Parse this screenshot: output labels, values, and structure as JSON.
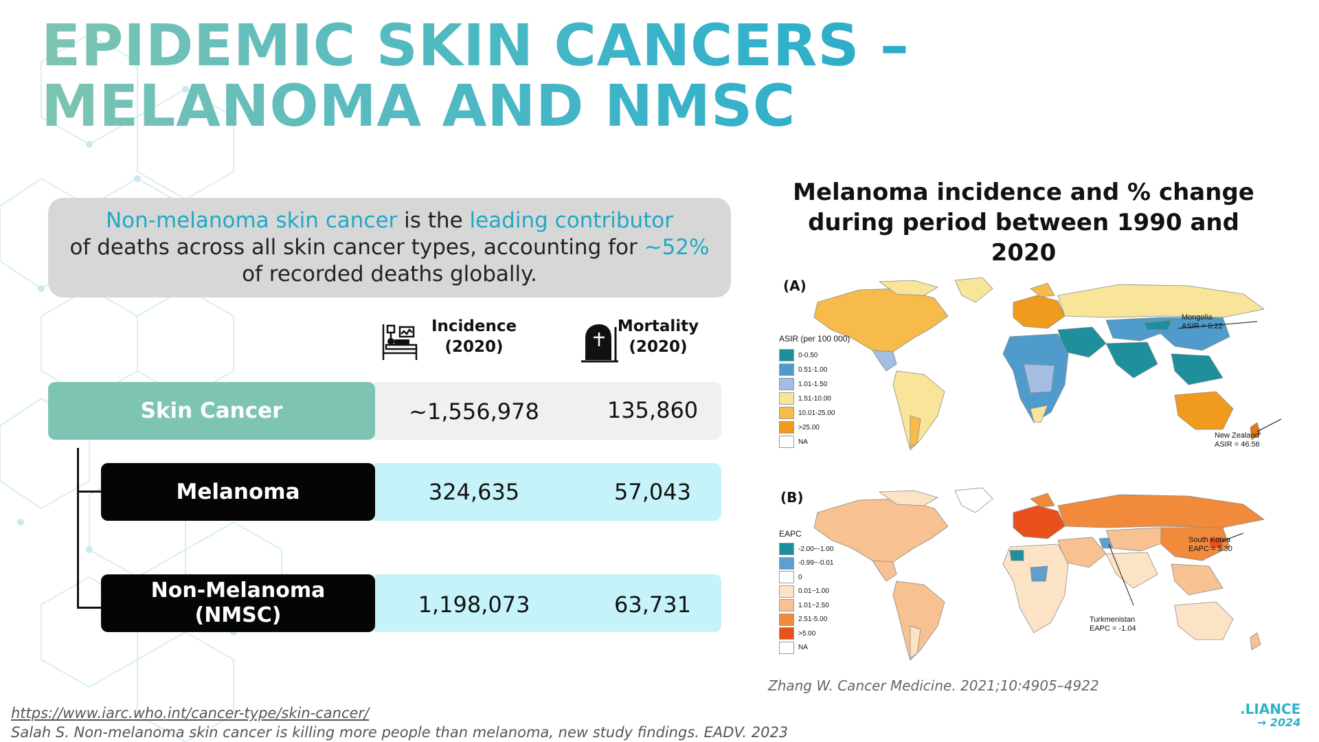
{
  "title": "EPIDEMIC SKIN CANCERS – MELANOMA AND NMSC",
  "callout": {
    "part1_hl": "Non-melanoma skin cancer",
    "part2": " is the ",
    "part3_hl": "leading contributor",
    "part4": "of deaths across all skin cancer types, accounting for ",
    "part5_hl": "~52%",
    "part6": "of recorded deaths globally."
  },
  "table": {
    "headers": {
      "incidence": [
        "Incidence",
        "(2020)"
      ],
      "mortality": [
        "Mortality",
        "(2020)"
      ],
      "incidence_icon": "hospital-bed-icon",
      "mortality_icon": "tombstone-icon"
    },
    "rows": [
      {
        "label": "Skin Cancer",
        "incidence": "~1,556,978",
        "mortality": "135,860"
      },
      {
        "label": "Melanoma",
        "incidence": "324,635",
        "mortality": "57,043"
      },
      {
        "label_line1": "Non-Melanoma",
        "label_line2": "(NMSC)",
        "incidence": "1,198,073",
        "mortality": "63,731"
      }
    ]
  },
  "figure": {
    "title_line1": "Melanoma incidence and % change",
    "title_line2": "during period between 1990 and 2020",
    "panel_a": {
      "label": "(A)",
      "legend_title": "ASIR (per 100 000)",
      "legend": [
        {
          "text": "0-0.50",
          "color": "#1e8f9c"
        },
        {
          "text": "0.51-1.00",
          "color": "#4f9ccc"
        },
        {
          "text": "1.01-1.50",
          "color": "#a3bde3"
        },
        {
          "text": "1.51-10.00",
          "color": "#f8e59a"
        },
        {
          "text": "10.01-25.00",
          "color": "#f6bb4a"
        },
        {
          "text": ">25.00",
          "color": "#f09a1e"
        },
        {
          "text": "NA",
          "color": "#ffffff"
        }
      ],
      "annotations": [
        {
          "line1": "Mongolia",
          "line2": "ASIR = 0.22"
        },
        {
          "line1": "New Zealand",
          "line2": "ASIR = 46.56"
        }
      ]
    },
    "panel_b": {
      "label": "(B)",
      "legend_title": "EAPC",
      "legend": [
        {
          "text": "-2.00~-1.00",
          "color": "#1e8f9c"
        },
        {
          "text": "-0.99~-0.01",
          "color": "#5f9fd0"
        },
        {
          "text": "0",
          "color": "#ffffff"
        },
        {
          "text": "0.01~1.00",
          "color": "#fde3c6"
        },
        {
          "text": "1.01~2.50",
          "color": "#f7c191"
        },
        {
          "text": "2.51-5.00",
          "color": "#f28a3c"
        },
        {
          "text": ">5.00",
          "color": "#e8501c"
        },
        {
          "text": "NA",
          "color": "#ffffff"
        }
      ],
      "annotations": [
        {
          "line1": "South Korea",
          "line2": "EAPC = 5.30"
        },
        {
          "line1": "Turkmenistan",
          "line2": "EAPC = -1.04"
        }
      ]
    },
    "citation": "Zhang W. Cancer Medicine. 2021;10:4905–4922"
  },
  "references": {
    "link": "https://www.iarc.who.int/cancer-type/skin-cancer/",
    "text": "Salah S. Non-melanoma skin cancer is killing more people than melanoma, new study findings. EADV. 2023"
  },
  "logo": {
    "line1": ".LIANCE",
    "line2": "→ 2024"
  },
  "colors": {
    "accent": "#1fa9c6",
    "title_gradient_start": "#7dc4b2",
    "skin_cancer_box": "#7ec4b3",
    "row_light_grey": "#f0f0f0",
    "row_light_cyan": "#c6f3f9"
  }
}
